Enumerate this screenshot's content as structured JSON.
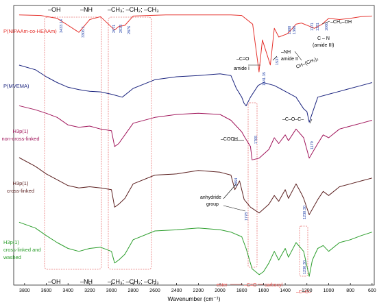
{
  "chart_data": {
    "type": "line",
    "xlabel": "Wavenumber (cm⁻¹)",
    "x_reversed": true,
    "xlim": [
      3900,
      580
    ],
    "x_ticks": [
      3800,
      3600,
      3400,
      3200,
      3000,
      2800,
      2600,
      2400,
      2200,
      2000,
      1800,
      1600,
      1400,
      1200,
      1000,
      800,
      600
    ],
    "grid": false,
    "colors": {
      "p_nipaam": "#e5322d",
      "p_mvema": "#1a237e",
      "h3p_noncross": "#a0145a",
      "h3p_cross": "#5a1e1e",
      "h3p_washed": "#2a9d2a",
      "annotation_box": "#e87474",
      "peak_label": "#1f3fa8"
    },
    "series": [
      {
        "name": "P(NIPAAm-co-HEAAm)",
        "x": [
          3850,
          3650,
          3500,
          3433,
          3300,
          3200,
          3100,
          2971,
          2933,
          2876,
          2800,
          2500,
          2200,
          1900,
          1800,
          1700,
          1641,
          1610,
          1537,
          1500,
          1459,
          1388,
          1366,
          1300,
          1250,
          1171,
          1131,
          1060,
          1000,
          900,
          800,
          700,
          600
        ],
        "y": [
          0.02,
          0.03,
          0.08,
          0.16,
          0.32,
          0.1,
          0.05,
          0.28,
          0.22,
          0.2,
          0.04,
          0.02,
          0.02,
          0.02,
          0.03,
          0.18,
          1.0,
          0.45,
          0.88,
          0.25,
          0.4,
          0.35,
          0.32,
          0.18,
          0.16,
          0.22,
          0.25,
          0.18,
          0.08,
          0.1,
          0.08,
          0.05,
          0.04
        ]
      },
      {
        "name": "P(MVEMA)",
        "x": [
          3850,
          3700,
          3600,
          3500,
          3400,
          3300,
          3200,
          3100,
          3000,
          2900,
          2800,
          2600,
          2400,
          2200,
          2000,
          1900,
          1850,
          1800,
          1780,
          1760,
          1720,
          1650,
          1600,
          1500,
          1450,
          1400,
          1300,
          1230,
          1200,
          1179,
          1100,
          1000,
          900,
          800,
          700,
          600
        ],
        "y": [
          0.0,
          0.08,
          0.2,
          0.3,
          0.38,
          0.42,
          0.45,
          0.46,
          0.5,
          0.55,
          0.4,
          0.25,
          0.2,
          0.18,
          0.15,
          0.18,
          0.4,
          0.55,
          0.65,
          0.7,
          0.55,
          0.35,
          0.3,
          0.35,
          0.4,
          0.45,
          0.55,
          0.75,
          0.8,
          0.98,
          0.55,
          0.5,
          0.45,
          0.4,
          0.35,
          0.3
        ]
      },
      {
        "name": "H3p(1) non-cross-linked",
        "x": [
          3850,
          3700,
          3600,
          3500,
          3400,
          3300,
          3200,
          3100,
          3000,
          2971,
          2933,
          2876,
          2800,
          2600,
          2400,
          2200,
          2000,
          1900,
          1850,
          1800,
          1770,
          1720,
          1705,
          1640,
          1550,
          1500,
          1460,
          1400,
          1370,
          1300,
          1230,
          1179,
          1100,
          1050,
          1000,
          900,
          800,
          700,
          600
        ],
        "y": [
          0.05,
          0.12,
          0.18,
          0.25,
          0.38,
          0.42,
          0.4,
          0.45,
          0.48,
          0.75,
          0.7,
          0.55,
          0.35,
          0.25,
          0.2,
          0.18,
          0.2,
          0.3,
          0.4,
          0.5,
          0.6,
          0.75,
          0.98,
          0.95,
          0.8,
          0.6,
          0.7,
          0.55,
          0.65,
          0.45,
          0.6,
          0.95,
          0.7,
          0.55,
          0.6,
          0.45,
          0.4,
          0.35,
          0.3
        ]
      },
      {
        "name": "H3p(1) cross-linked",
        "x": [
          3850,
          3700,
          3600,
          3500,
          3400,
          3300,
          3200,
          3100,
          3000,
          2971,
          2933,
          2876,
          2800,
          2600,
          2400,
          2200,
          2000,
          1900,
          1864,
          1820,
          1778,
          1720,
          1640,
          1550,
          1500,
          1460,
          1400,
          1370,
          1300,
          1250,
          1230,
          1179,
          1100,
          1050,
          1000,
          900,
          800,
          700,
          600
        ],
        "y": [
          0.0,
          0.15,
          0.28,
          0.38,
          0.48,
          0.52,
          0.5,
          0.52,
          0.55,
          0.85,
          0.8,
          0.7,
          0.45,
          0.3,
          0.28,
          0.22,
          0.25,
          0.3,
          0.55,
          0.4,
          0.72,
          0.85,
          0.95,
          0.8,
          0.65,
          0.75,
          0.55,
          0.7,
          0.45,
          0.62,
          0.7,
          0.98,
          0.72,
          0.58,
          0.65,
          0.5,
          0.45,
          0.4,
          0.35
        ]
      },
      {
        "name": "H3p(1) cross-linked and washed",
        "x": [
          3850,
          3700,
          3600,
          3500,
          3400,
          3300,
          3200,
          3100,
          3000,
          2971,
          2933,
          2876,
          2800,
          2600,
          2400,
          2200,
          2000,
          1900,
          1800,
          1760,
          1705,
          1640,
          1600,
          1550,
          1500,
          1460,
          1400,
          1370,
          1300,
          1230,
          1179,
          1150,
          1100,
          1050,
          1000,
          900,
          800,
          700,
          600
        ],
        "y": [
          0.05,
          0.15,
          0.28,
          0.4,
          0.5,
          0.55,
          0.5,
          0.48,
          0.55,
          0.75,
          0.7,
          0.6,
          0.35,
          0.2,
          0.18,
          0.15,
          0.18,
          0.22,
          0.3,
          0.5,
          0.85,
          0.95,
          0.9,
          0.75,
          0.55,
          0.7,
          0.5,
          0.65,
          0.4,
          0.55,
          0.98,
          0.7,
          0.5,
          0.45,
          0.55,
          0.4,
          0.35,
          0.28,
          0.22
        ]
      }
    ],
    "peak_labels": [
      {
        "text": "3433.14",
        "x": 3433
      },
      {
        "text": "3306.1",
        "x": 3306
      },
      {
        "text": "2971",
        "x": 2971
      },
      {
        "text": "2933",
        "x": 2933
      },
      {
        "text": "2876",
        "x": 2876
      },
      {
        "text": "1641.35",
        "x": 1641
      },
      {
        "text": "1537",
        "x": 1537
      },
      {
        "text": "1388",
        "x": 1388
      },
      {
        "text": "1366",
        "x": 1366
      },
      {
        "text": "1171",
        "x": 1171
      },
      {
        "text": "1131",
        "x": 1131
      },
      {
        "text": "1060",
        "x": 1060
      },
      {
        "text": "1179",
        "x": 1179
      },
      {
        "text": "1705",
        "x": 1705
      },
      {
        "text": "1864",
        "x": 1864
      },
      {
        "text": "1778",
        "x": 1778
      },
      {
        "text": "1230.30",
        "x": 1230
      },
      {
        "text": "1230.30",
        "x": 1230
      }
    ],
    "group_labels_top": [
      "–OH",
      "–NH",
      "–CH₃; –CH₂; –CH₃"
    ],
    "group_labels_bottom": [
      "–OH",
      "–NH",
      "–CH₃; –CH₂; –CH₃"
    ],
    "annotations": {
      "ch2oh": "–CH₂–OH",
      "cn_amide3_a": "C – N",
      "cn_amide3_b": "(amide III)",
      "ch_ch3": "CH–(CH₃)₂",
      "nh_amide2_a": "–NH",
      "nh_amide2_b": "amide II",
      "co_amide1_a": "–C=O",
      "co_amide1_b": "amide I",
      "coc": "–C–O–C–",
      "cooh": "–COOH",
      "anhydride_a": "anhydride",
      "anhydride_b": "group",
      "ester": "ester",
      "carboxyl": "carboxyl",
      "co_bottom": "–C=O",
      "co_single": "–C–O–"
    }
  }
}
